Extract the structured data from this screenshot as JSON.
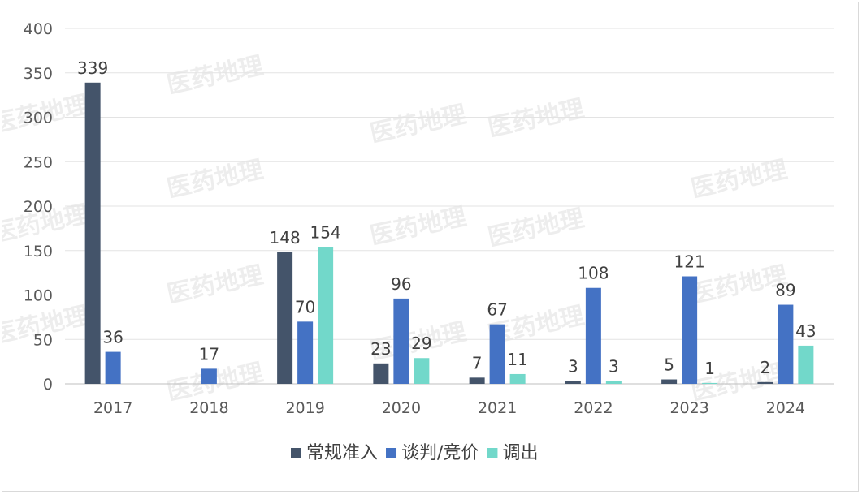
{
  "chart_data": {
    "type": "bar",
    "categories": [
      "2017",
      "2018",
      "2019",
      "2020",
      "2021",
      "2022",
      "2023",
      "2024"
    ],
    "series": [
      {
        "name": "常规准入",
        "color": "#44546a",
        "values": [
          339,
          null,
          148,
          23,
          7,
          3,
          5,
          2
        ]
      },
      {
        "name": "谈判/竞价",
        "color": "#4472c4",
        "values": [
          36,
          17,
          70,
          96,
          67,
          108,
          121,
          89
        ]
      },
      {
        "name": "调出",
        "color": "#72d8ca",
        "values": [
          null,
          null,
          154,
          29,
          11,
          3,
          1,
          43
        ]
      }
    ],
    "ylim": [
      0,
      400
    ],
    "yticks": [
      "0",
      "50",
      "100",
      "150",
      "200",
      "250",
      "300",
      "350",
      "400"
    ],
    "grid": true,
    "legend": "bottom"
  },
  "watermark": {
    "text": "医药地理"
  }
}
